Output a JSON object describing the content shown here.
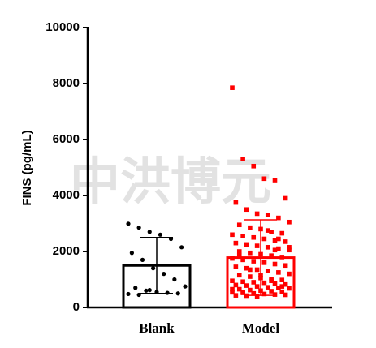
{
  "chart_data": {
    "type": "bar-scatter",
    "ylabel": "FINS (pg/mL)",
    "watermark": "中洪博元",
    "categories": [
      "Blank",
      "Model"
    ],
    "values": [
      1500,
      1780
    ],
    "errors": [
      1000,
      1350
    ],
    "colors": [
      "#000000",
      "#ff0000"
    ],
    "markers": [
      "circle",
      "square"
    ],
    "points": [
      [
        2990,
        2850,
        2700,
        2600,
        2450,
        2150,
        1950,
        1700,
        1400,
        1200,
        1000,
        750,
        700,
        600,
        550,
        520,
        500,
        480,
        450,
        620
      ],
      [
        7850,
        5300,
        5050,
        4600,
        4550,
        3900,
        3750,
        3500,
        3350,
        3300,
        3200,
        3050,
        2950,
        2850,
        2800,
        2700,
        2650,
        2600,
        2550,
        2500,
        2450,
        2400,
        2350,
        2300,
        2250,
        2200,
        2150,
        2100,
        2050,
        2000,
        1950,
        1900,
        1850,
        1800,
        1750,
        1700,
        1650,
        1600,
        1550,
        1500,
        1450,
        1400,
        1350,
        1300,
        1250,
        1200,
        1150,
        1100,
        1050,
        1000,
        980,
        950,
        920,
        900,
        880,
        850,
        820,
        800,
        780,
        750,
        720,
        700,
        680,
        650,
        620,
        600,
        580,
        560,
        540,
        520,
        500,
        480,
        460,
        450,
        430,
        420,
        400,
        2750,
        2450,
        2150,
        1850,
        1350,
        1150,
        950,
        750,
        650,
        550,
        500,
        1600,
        2050
      ]
    ],
    "ylim": [
      0,
      10000
    ],
    "yticks": [
      0,
      2000,
      4000,
      6000,
      8000,
      10000
    ]
  }
}
